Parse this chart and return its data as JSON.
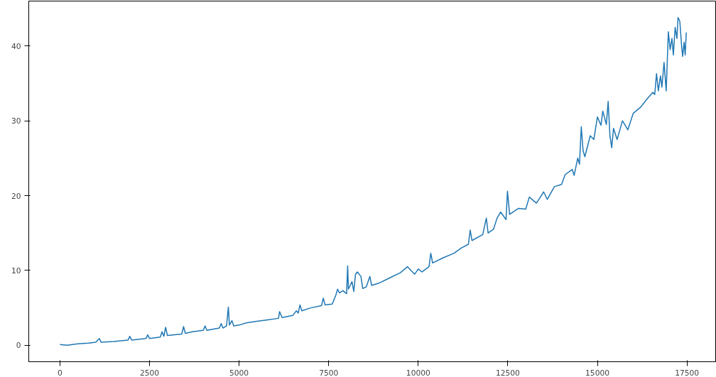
{
  "chart_data": {
    "type": "line",
    "x": [
      0,
      200,
      500,
      800,
      1000,
      1100,
      1150,
      1500,
      1900,
      1950,
      2000,
      2400,
      2450,
      2500,
      2800,
      2850,
      2900,
      2950,
      3000,
      3400,
      3450,
      3500,
      3700,
      4000,
      4050,
      4100,
      4450,
      4500,
      4550,
      4650,
      4700,
      4730,
      4800,
      4850,
      5000,
      5200,
      5500,
      5800,
      6100,
      6130,
      6200,
      6500,
      6600,
      6650,
      6700,
      6750,
      7000,
      7300,
      7350,
      7400,
      7600,
      7700,
      7750,
      7800,
      7900,
      8000,
      8030,
      8050,
      8150,
      8200,
      8250,
      8300,
      8400,
      8450,
      8550,
      8650,
      8700,
      8900,
      9200,
      9500,
      9700,
      9900,
      10000,
      10100,
      10300,
      10350,
      10400,
      10700,
      11000,
      11200,
      11400,
      11450,
      11500,
      11800,
      11900,
      11950,
      12100,
      12200,
      12300,
      12450,
      12490,
      12550,
      12800,
      13000,
      13100,
      13300,
      13500,
      13600,
      13800,
      14000,
      14100,
      14300,
      14350,
      14450,
      14500,
      14550,
      14600,
      14650,
      14800,
      14900,
      15000,
      15100,
      15150,
      15250,
      15300,
      15350,
      15400,
      15450,
      15550,
      15700,
      15850,
      16000,
      16200,
      16400,
      16550,
      16600,
      16650,
      16700,
      16760,
      16800,
      16860,
      16920,
      16980,
      17030,
      17080,
      17120,
      17170,
      17220,
      17250,
      17300,
      17350,
      17380,
      17420,
      17450,
      17480
    ],
    "series": [
      {
        "color": "#1f77b4",
        "values": [
          0.1,
          0.0,
          0.2,
          0.3,
          0.4,
          0.9,
          0.4,
          0.5,
          0.7,
          1.2,
          0.7,
          0.9,
          1.4,
          0.9,
          1.1,
          1.8,
          1.2,
          2.4,
          1.3,
          1.5,
          2.5,
          1.6,
          1.8,
          2.0,
          2.6,
          2.0,
          2.3,
          2.9,
          2.3,
          2.6,
          5.1,
          2.7,
          3.3,
          2.6,
          2.7,
          3.0,
          3.2,
          3.4,
          3.6,
          4.5,
          3.7,
          4.0,
          4.6,
          4.3,
          5.4,
          4.6,
          5.0,
          5.3,
          6.3,
          5.4,
          5.5,
          6.7,
          7.5,
          7.0,
          7.3,
          6.9,
          10.6,
          7.5,
          8.5,
          7.2,
          9.5,
          9.8,
          9.2,
          7.6,
          7.8,
          9.2,
          8.0,
          8.3,
          9.0,
          9.7,
          10.5,
          9.5,
          10.2,
          9.8,
          10.5,
          12.3,
          11.0,
          11.7,
          12.3,
          13.0,
          13.5,
          15.4,
          14.0,
          14.8,
          17.0,
          15.0,
          15.5,
          17.0,
          17.8,
          16.8,
          20.6,
          17.5,
          18.3,
          18.2,
          19.8,
          19.0,
          20.5,
          19.5,
          21.2,
          21.5,
          22.8,
          23.5,
          22.7,
          25.0,
          24.2,
          29.2,
          26.0,
          25.2,
          28.0,
          27.5,
          30.5,
          29.4,
          31.3,
          29.5,
          32.6,
          28.0,
          26.4,
          29.0,
          27.5,
          30.0,
          28.8,
          31.0,
          31.8,
          33.0,
          33.8,
          33.5,
          36.3,
          34.0,
          36.0,
          34.5,
          37.8,
          34.0,
          41.9,
          39.5,
          41.0,
          38.8,
          42.5,
          41.0,
          43.8,
          43.3,
          40.0,
          38.6,
          40.5,
          38.8,
          41.8
        ]
      }
    ],
    "xlim": [
      -870,
      18300
    ],
    "ylim": [
      -2.2,
      46
    ],
    "xticks": [
      0,
      2500,
      5000,
      7500,
      10000,
      12500,
      15000,
      17500
    ],
    "yticks": [
      0,
      10,
      20,
      30,
      40
    ],
    "grid": false,
    "marker": "none",
    "line_style": "solid"
  }
}
